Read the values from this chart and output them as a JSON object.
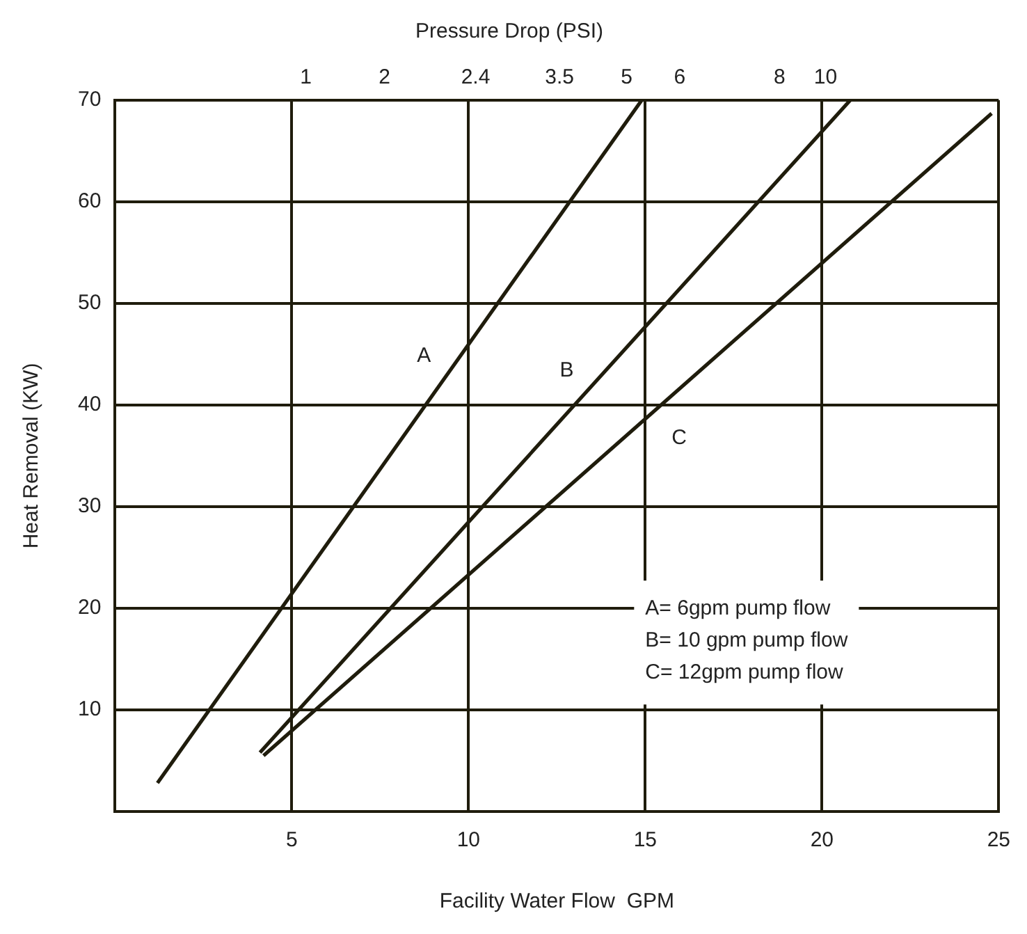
{
  "chart_data": {
    "type": "line",
    "xlabel": "Facility Water Flow  GPM",
    "ylabel": "Heat Removal (KW)",
    "title": "Pressure Drop (PSI)",
    "xlim": [
      0,
      25
    ],
    "xticks": [
      5,
      10,
      15,
      20,
      25
    ],
    "ylim": [
      0,
      70
    ],
    "yticks": [
      10,
      20,
      30,
      40,
      50,
      60,
      70
    ],
    "grid": true,
    "legend": false,
    "marker": "none",
    "line_style": "solid",
    "series": [
      {
        "name": "A",
        "color": "#1f1c0c",
        "x": [
          1.2,
          14.9
        ],
        "values": [
          2.8,
          70
        ]
      },
      {
        "name": "B",
        "color": "#1f1c0c",
        "x": [
          4.1,
          20.8
        ],
        "values": [
          5.8,
          70
        ]
      },
      {
        "name": "C",
        "color": "#1f1c0c",
        "x": [
          4.2,
          24.8
        ],
        "values": [
          5.5,
          68.7
        ]
      }
    ],
    "annotations": [
      "1",
      "2",
      "2.4",
      "3.5",
      "5",
      "6",
      "8",
      "10",
      "A= 6gpm pump flow",
      "B= 10 gpm pump flow",
      "C= 12gpm pump flow"
    ]
  }
}
